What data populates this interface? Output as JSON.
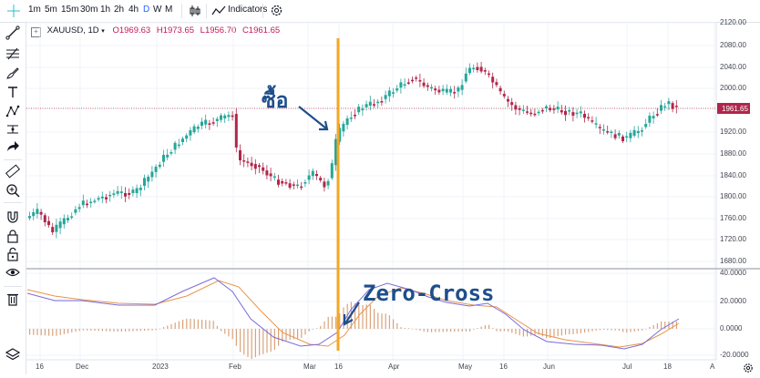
{
  "toolbar": {
    "timeframes": [
      "1m",
      "5m",
      "15m",
      "30m",
      "1h",
      "2h",
      "4h",
      "D",
      "W",
      "M"
    ],
    "active_timeframe": "D",
    "indicators_label": "Indicators"
  },
  "legend": {
    "symbol": "XAUUSD, 1D",
    "open": "O1969.63",
    "high": "H1973.65",
    "low": "L1956.70",
    "close": "C1961.65"
  },
  "price_axis": {
    "ticks": [
      "2120.00",
      "2080.00",
      "2040.00",
      "2000.00",
      "1920.00",
      "1880.00",
      "1840.00",
      "1800.00",
      "1760.00",
      "1720.00",
      "1680.00"
    ],
    "current_price": "1961.65"
  },
  "macd_axis": {
    "ticks": [
      "40.0000",
      "20.0000",
      "0.0000",
      "-20.0000"
    ]
  },
  "time_axis": {
    "labels": [
      "16",
      "Dec",
      "2023",
      "Feb",
      "Mar",
      "16",
      "Apr",
      "May",
      "16",
      "Jun",
      "Jul",
      "18",
      "A"
    ]
  },
  "annotations": {
    "buy_text": "ซื้อ",
    "zero_cross_text": "Zero-Cross"
  },
  "colors": {
    "bull": "#26a69a",
    "bear": "#b0264a",
    "macd_line": "#7b6cd9",
    "signal_line": "#e8944a",
    "vline": "#f5a623",
    "annotation": "#1e4e8c"
  },
  "icons": [
    "crosshair-icon",
    "trend-line-icon",
    "fib-icon",
    "brush-icon",
    "text-icon",
    "pattern-icon",
    "measure-icon",
    "arrow-icon",
    "ruler-icon",
    "zoom-icon",
    "magnet-icon",
    "lock-icon",
    "unlock-icon",
    "eye-icon",
    "trash-icon",
    "layers-icon",
    "settings-icon",
    "candles-icon",
    "compare-icon"
  ]
}
